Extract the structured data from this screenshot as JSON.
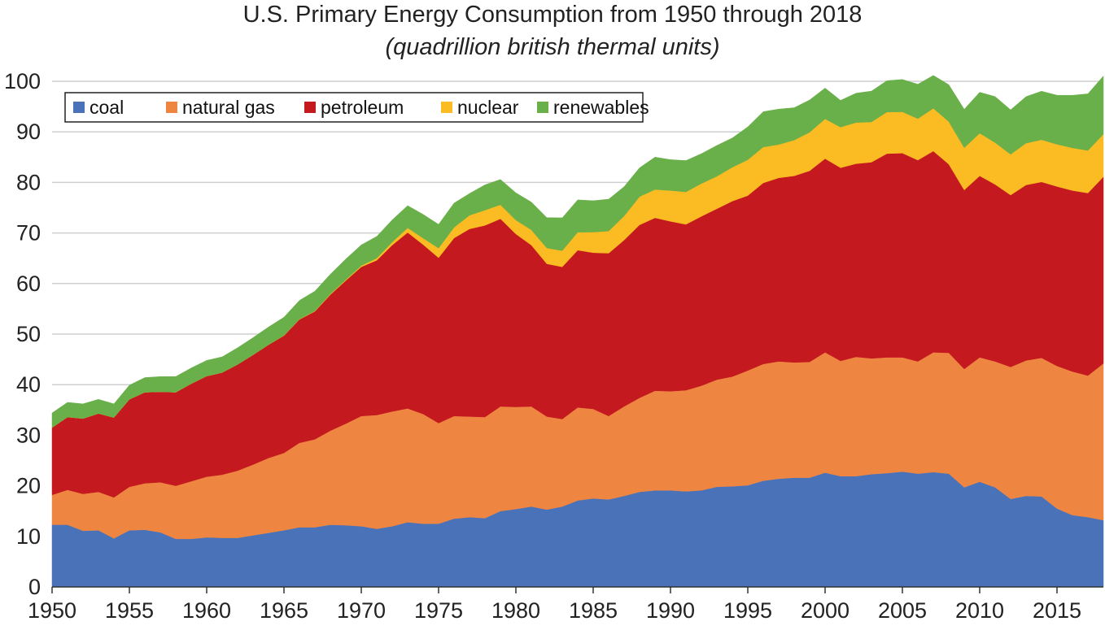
{
  "chart_data": {
    "type": "area",
    "stacked": true,
    "title": "U.S. Primary Energy Consumption from 1950 through 2018",
    "subtitle": "(quadrillion british thermal units)",
    "xlabel": "",
    "ylabel": "",
    "xlim": [
      1950,
      2018
    ],
    "ylim": [
      0,
      100
    ],
    "grid": true,
    "legend_position": "top-left",
    "x_ticks": [
      1950,
      1955,
      1960,
      1965,
      1970,
      1975,
      1980,
      1985,
      1990,
      1995,
      2000,
      2005,
      2010,
      2015
    ],
    "y_ticks": [
      0,
      10,
      20,
      30,
      40,
      50,
      60,
      70,
      80,
      90,
      100
    ],
    "x": [
      1950,
      1951,
      1952,
      1953,
      1954,
      1955,
      1956,
      1957,
      1958,
      1959,
      1960,
      1961,
      1962,
      1963,
      1964,
      1965,
      1966,
      1967,
      1968,
      1969,
      1970,
      1971,
      1972,
      1973,
      1974,
      1975,
      1976,
      1977,
      1978,
      1979,
      1980,
      1981,
      1982,
      1983,
      1984,
      1985,
      1986,
      1987,
      1988,
      1989,
      1990,
      1991,
      1992,
      1993,
      1994,
      1995,
      1996,
      1997,
      1998,
      1999,
      2000,
      2001,
      2002,
      2003,
      2004,
      2005,
      2006,
      2007,
      2008,
      2009,
      2010,
      2011,
      2012,
      2013,
      2014,
      2015,
      2016,
      2017,
      2018
    ],
    "series": [
      {
        "name": "coal",
        "color": "#4a72b8",
        "values": [
          12.3,
          12.3,
          11.1,
          11.2,
          9.6,
          11.2,
          11.3,
          10.8,
          9.5,
          9.5,
          9.8,
          9.7,
          9.7,
          10.2,
          10.7,
          11.2,
          11.8,
          11.8,
          12.3,
          12.2,
          12.0,
          11.5,
          12.0,
          12.8,
          12.5,
          12.5,
          13.5,
          13.8,
          13.6,
          15.0,
          15.4,
          15.9,
          15.3,
          15.9,
          17.1,
          17.5,
          17.3,
          18.0,
          18.8,
          19.1,
          19.1,
          18.9,
          19.1,
          19.8,
          19.9,
          20.1,
          21.0,
          21.4,
          21.6,
          21.6,
          22.6,
          21.9,
          21.9,
          22.3,
          22.5,
          22.8,
          22.4,
          22.7,
          22.4,
          19.7,
          20.8,
          19.7,
          17.4,
          18.0,
          17.9,
          15.5,
          14.2,
          13.8,
          13.2
        ]
      },
      {
        "name": "natural gas",
        "color": "#ee8642",
        "values": [
          5.9,
          6.9,
          7.3,
          7.6,
          8.1,
          8.6,
          9.2,
          9.9,
          10.5,
          11.4,
          12.0,
          12.5,
          13.3,
          14.0,
          14.8,
          15.3,
          16.7,
          17.4,
          18.6,
          20.1,
          21.8,
          22.5,
          22.7,
          22.5,
          21.7,
          19.9,
          20.3,
          19.9,
          20.0,
          20.7,
          20.2,
          19.8,
          18.4,
          17.3,
          18.4,
          17.7,
          16.5,
          17.7,
          18.6,
          19.7,
          19.6,
          20.0,
          20.7,
          21.2,
          21.7,
          22.7,
          23.1,
          23.2,
          22.8,
          22.9,
          23.8,
          22.8,
          23.6,
          22.9,
          22.9,
          22.6,
          22.2,
          23.7,
          23.9,
          23.4,
          24.6,
          24.9,
          26.1,
          26.8,
          27.4,
          28.2,
          28.4,
          28.0,
          31.0
        ]
      },
      {
        "name": "petroleum",
        "color": "#c4191f",
        "values": [
          13.3,
          14.4,
          14.9,
          15.5,
          15.8,
          17.3,
          18.0,
          17.9,
          18.5,
          19.3,
          19.9,
          20.2,
          21.0,
          21.7,
          22.4,
          23.2,
          24.4,
          25.3,
          26.9,
          28.3,
          29.5,
          30.6,
          32.9,
          34.8,
          33.5,
          32.7,
          35.2,
          37.1,
          37.9,
          37.1,
          34.2,
          31.9,
          30.2,
          30.1,
          31.1,
          30.9,
          32.2,
          32.9,
          34.2,
          34.2,
          33.6,
          32.8,
          33.5,
          33.8,
          34.7,
          34.6,
          35.8,
          36.3,
          36.9,
          37.8,
          38.3,
          38.2,
          38.2,
          38.8,
          40.3,
          40.4,
          39.8,
          39.8,
          37.3,
          35.4,
          35.9,
          35.0,
          34.0,
          34.7,
          34.8,
          35.5,
          35.8,
          36.1,
          36.9
        ]
      },
      {
        "name": "nuclear",
        "color": "#fbbb22",
        "values": [
          0,
          0,
          0,
          0,
          0,
          0,
          0,
          0,
          0,
          0,
          0.0,
          0.0,
          0.0,
          0.0,
          0.0,
          0.04,
          0.06,
          0.09,
          0.14,
          0.15,
          0.24,
          0.41,
          0.58,
          0.91,
          1.27,
          1.9,
          2.11,
          2.7,
          3.02,
          2.78,
          2.74,
          3.01,
          3.13,
          3.2,
          3.55,
          4.08,
          4.38,
          4.75,
          5.59,
          5.6,
          6.1,
          6.42,
          6.48,
          6.41,
          6.69,
          7.08,
          7.09,
          6.6,
          7.07,
          7.61,
          7.86,
          8.03,
          8.14,
          7.96,
          8.22,
          8.16,
          8.21,
          8.46,
          8.43,
          8.36,
          8.43,
          8.27,
          8.06,
          8.27,
          8.34,
          8.34,
          8.43,
          8.42,
          8.44
        ]
      },
      {
        "name": "renewables",
        "color": "#6ab04a",
        "values": [
          2.9,
          2.9,
          2.9,
          2.8,
          2.7,
          2.8,
          2.9,
          3.0,
          3.1,
          3.1,
          3.1,
          3.1,
          3.3,
          3.4,
          3.5,
          3.6,
          3.7,
          3.9,
          3.9,
          4.1,
          4.1,
          4.3,
          4.4,
          4.4,
          4.7,
          4.7,
          4.8,
          4.3,
          5.0,
          5.0,
          5.4,
          5.5,
          6.0,
          6.5,
          6.4,
          6.2,
          6.3,
          5.8,
          5.7,
          6.4,
          6.1,
          6.2,
          5.9,
          6.1,
          5.8,
          6.5,
          7.0,
          7.0,
          6.4,
          6.4,
          6.1,
          5.3,
          5.8,
          6.1,
          6.2,
          6.4,
          6.8,
          6.5,
          7.3,
          7.6,
          8.1,
          9.1,
          8.8,
          9.2,
          9.6,
          9.7,
          10.4,
          11.2,
          11.5
        ]
      }
    ]
  }
}
